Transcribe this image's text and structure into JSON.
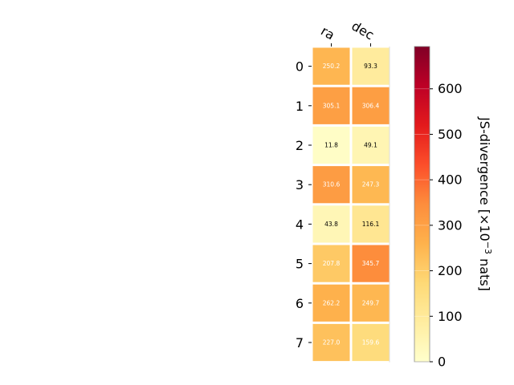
{
  "chart_data": {
    "type": "heatmap",
    "columns": [
      "ra",
      "dec"
    ],
    "rows": [
      "0",
      "1",
      "2",
      "3",
      "4",
      "5",
      "6",
      "7"
    ],
    "values": [
      [
        250.2,
        93.3
      ],
      [
        305.1,
        306.4
      ],
      [
        11.8,
        49.1
      ],
      [
        310.6,
        247.3
      ],
      [
        43.8,
        116.1
      ],
      [
        207.8,
        345.7
      ],
      [
        262.2,
        249.7
      ],
      [
        227.0,
        159.6
      ]
    ],
    "cell_labels": [
      [
        "250.2",
        "93.3"
      ],
      [
        "305.1",
        "306.4"
      ],
      [
        "11.8",
        "49.1"
      ],
      [
        "310.6",
        "247.3"
      ],
      [
        "43.8",
        "116.1"
      ],
      [
        "207.8",
        "345.7"
      ],
      [
        "262.2",
        "249.7"
      ],
      [
        "227.0",
        "159.6"
      ]
    ],
    "colormap": "YlOrRd",
    "colorbar": {
      "label": "JS-divergence [×10",
      "label_exponent": "−3",
      "label_suffix": " nats]",
      "range": [
        0,
        693
      ],
      "ticks": [
        0,
        100,
        200,
        300,
        400,
        500,
        600
      ],
      "tick_labels": [
        "0",
        "100",
        "200",
        "300",
        "400",
        "500",
        "600"
      ]
    },
    "grid": false
  }
}
